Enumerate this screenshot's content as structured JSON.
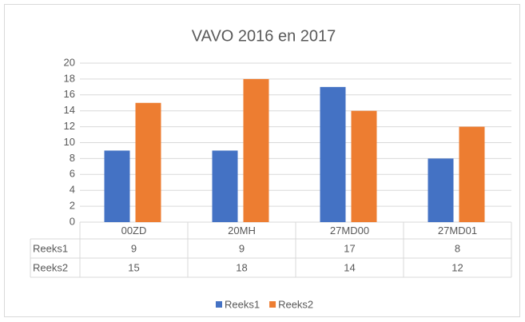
{
  "chart_data": {
    "type": "bar",
    "title": "VAVO 2016 en 2017",
    "categories": [
      "00ZD",
      "20MH",
      "27MD00",
      "27MD01"
    ],
    "series": [
      {
        "name": "Reeks1",
        "color": "#4472c4",
        "values": [
          9,
          9,
          17,
          8
        ]
      },
      {
        "name": "Reeks2",
        "color": "#ed7d31",
        "values": [
          15,
          18,
          14,
          12
        ]
      }
    ],
    "ylim": [
      0,
      20
    ],
    "yticks": [
      0,
      2,
      4,
      6,
      8,
      10,
      12,
      14,
      16,
      18,
      20
    ],
    "grid": true,
    "legend": "bottom"
  }
}
